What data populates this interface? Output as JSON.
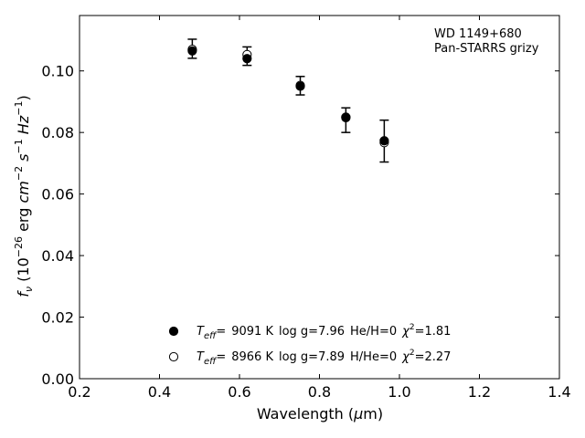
{
  "chart_data": {
    "type": "scatter",
    "title": "",
    "xlabel": "Wavelength (μm)",
    "ylabel": "f_ν (10^-26 erg cm^-2 s^-1 Hz^-1)",
    "xlim": [
      0.2,
      1.4
    ],
    "ylim": [
      0.0,
      0.118
    ],
    "xticks": [
      0.2,
      0.4,
      0.6,
      0.8,
      1.0,
      1.2,
      1.4
    ],
    "xtick_labels": [
      "0.2",
      "0.4",
      "0.6",
      "0.8",
      "1.0",
      "1.2",
      "1.4"
    ],
    "yticks": [
      0.0,
      0.02,
      0.04,
      0.06,
      0.08,
      0.1
    ],
    "ytick_labels": [
      "0.00",
      "0.02",
      "0.04",
      "0.06",
      "0.08",
      "0.10"
    ],
    "grid": false,
    "legend_placement": "lower-center",
    "annotation": {
      "object": "WD 1149+680",
      "survey": "Pan-STARRS grizy"
    },
    "observed": {
      "x": [
        0.482,
        0.619,
        0.752,
        0.866,
        0.962
      ],
      "y": [
        0.1072,
        0.1048,
        0.0952,
        0.084,
        0.0772
      ],
      "yerr": [
        0.0031,
        0.003,
        0.003,
        0.004,
        0.0068
      ]
    },
    "series": [
      {
        "name": "T_eff= 9091 K log g=7.96 He/H=0 χ²=1.81",
        "marker": "filled-circle",
        "x": [
          0.482,
          0.619,
          0.752,
          0.866,
          0.962
        ],
        "y": [
          0.1065,
          0.104,
          0.095,
          0.0848,
          0.0773
        ]
      },
      {
        "name": "T_eff= 8966 K log g=7.89 H/He=0 χ²=2.27",
        "marker": "open-circle",
        "x": [
          0.482,
          0.619,
          0.752,
          0.866,
          0.962
        ],
        "y": [
          0.107,
          0.1053,
          0.0953,
          0.085,
          0.0767
        ]
      }
    ]
  },
  "legend": {
    "entries": [
      {
        "teff_label": "T",
        "teff_sub": "eff",
        "teff_eq": "=",
        "teff_value": "9091 K",
        "logg": "log g=7.96",
        "comp": "He/H=0",
        "chi_label": "χ",
        "chi_sup": "2",
        "chi_value": "=1.81"
      },
      {
        "teff_label": "T",
        "teff_sub": "eff",
        "teff_eq": "=",
        "teff_value": "8966 K",
        "logg": "log g=7.89",
        "comp": "H/He=0",
        "chi_label": "χ",
        "chi_sup": "2",
        "chi_value": "=2.27"
      }
    ]
  },
  "axis_text": {
    "xlabel_main": "Wavelength (",
    "xlabel_mu": "μ",
    "xlabel_m": "m)",
    "ylabel_f": "f",
    "ylabel_nu": "ν",
    "ylabel_open": " (10",
    "ylabel_exp1": "−26",
    "ylabel_erg": " erg ",
    "ylabel_cm": "cm",
    "ylabel_exp2": "−2",
    "ylabel_s": " s",
    "ylabel_exp3": "−1",
    "ylabel_hz": " Hz",
    "ylabel_exp4": "−1",
    "ylabel_close": ")"
  }
}
